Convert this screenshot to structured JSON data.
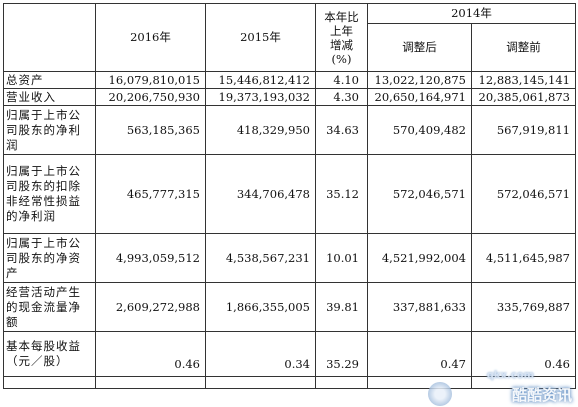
{
  "header": {
    "col_2016": "2016年",
    "col_2015": "2015年",
    "col_change_lines": [
      "本年比",
      "上年",
      "增减",
      "(%)"
    ],
    "col_2014": "2014年",
    "col_adjusted_after": "调整后",
    "col_adjusted_before": "调整前"
  },
  "rows": [
    {
      "label": "总资产",
      "v2016": "16,079,810,015",
      "v2015": "15,446,812,412",
      "change": "4.10",
      "after": "13,022,120,875",
      "before": "12,883,145,141"
    },
    {
      "label": "营业收入",
      "v2016": "20,206,750,930",
      "v2015": "19,373,193,032",
      "change": "4.30",
      "after": "20,650,164,971",
      "before": "20,385,061,873"
    },
    {
      "label": "归属于上市公司股东的净利润",
      "v2016": "563,185,365",
      "v2015": "418,329,950",
      "change": "34.63",
      "after": "570,409,482",
      "before": "567,919,811"
    },
    {
      "label": "归属于上市公司股东的扣除非经常性损益的净利润",
      "v2016": "465,777,315",
      "v2015": "344,706,478",
      "change": "35.12",
      "after": "572,046,571",
      "before": "572,046,571"
    },
    {
      "label": "归属于上市公司股东的净资产",
      "v2016": "4,993,059,512",
      "v2015": "4,538,567,231",
      "change": "10.01",
      "after": "4,521,992,004",
      "before": "4,511,645,987"
    },
    {
      "label": "经营活动产生的现金流量净额",
      "v2016": "2,609,272,988",
      "v2015": "1,866,355,005",
      "change": "39.81",
      "after": "337,881,633",
      "before": "335,769,887"
    },
    {
      "label": "基本每股收益（元／股）",
      "v2016": "0.46",
      "v2015": "0.34",
      "change": "35.29",
      "after": "0.47",
      "before": "0.46"
    }
  ],
  "watermark": {
    "url": "qkx.com",
    "text": "酷酷资讯"
  }
}
